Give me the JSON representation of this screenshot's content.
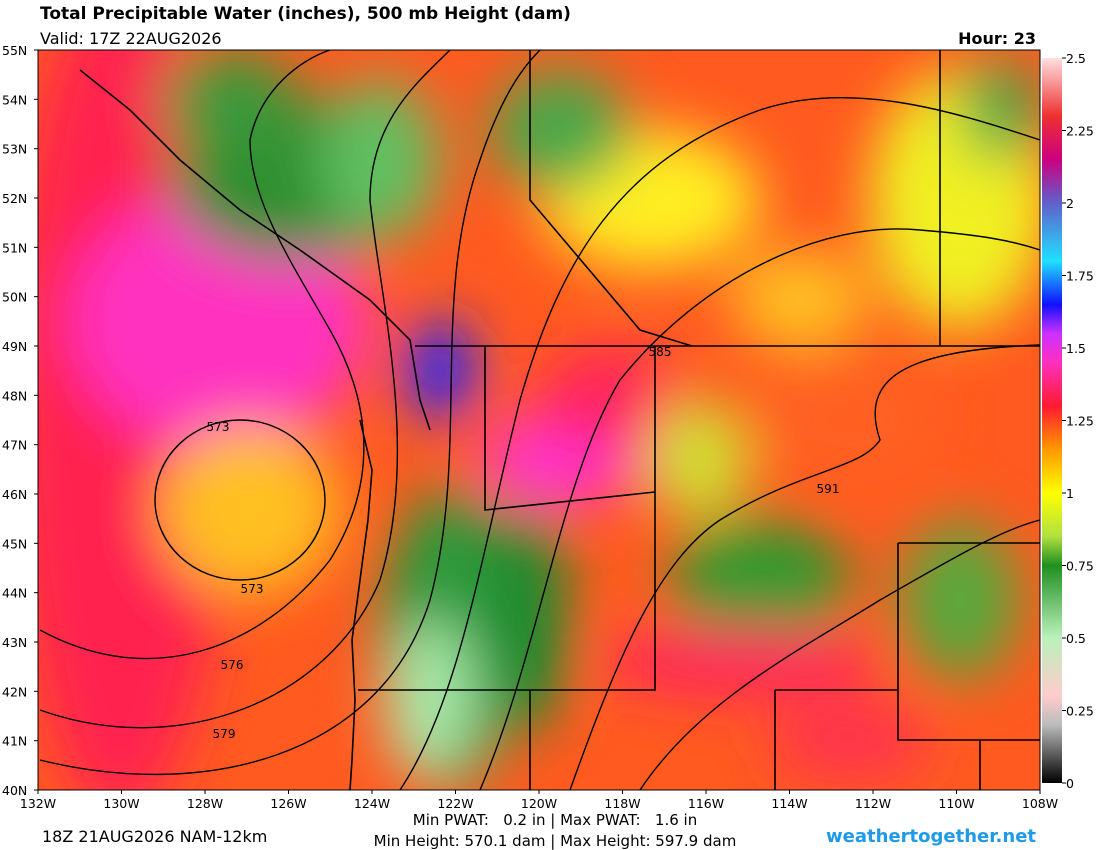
{
  "header": {
    "title": "Total Precipitable Water (inches), 500 mb Height (dam)",
    "valid": "Valid: 17Z 22AUG2026",
    "hour": "Hour: 23"
  },
  "map": {
    "lat_labels": [
      "55N",
      "54N",
      "53N",
      "52N",
      "51N",
      "50N",
      "49N",
      "48N",
      "47N",
      "46N",
      "45N",
      "44N",
      "43N",
      "42N",
      "41N",
      "40N"
    ],
    "lon_labels": [
      "132W",
      "130W",
      "128W",
      "126W",
      "124W",
      "122W",
      "120W",
      "118W",
      "116W",
      "114W",
      "112W",
      "110W",
      "108W"
    ],
    "contour_labels": [
      "573",
      "573",
      "576",
      "579",
      "585",
      "591"
    ]
  },
  "colorbar": {
    "range": [
      0,
      2.5
    ],
    "ticks": [
      0,
      0.25,
      0.5,
      0.75,
      1,
      1.25,
      1.5,
      1.75,
      2,
      2.25,
      2.5
    ]
  },
  "footer": {
    "run": "18Z 21AUG2026 NAM-12km",
    "pwat": "Min PWAT:   0.2 in | Max PWAT:   1.6 in",
    "height": "Min Height: 570.1 dam | Max Height: 597.9 dam",
    "source": "weathertogether.net"
  }
}
